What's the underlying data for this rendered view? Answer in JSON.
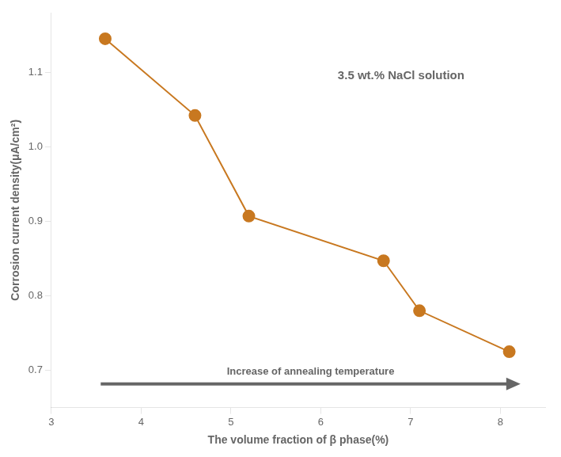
{
  "chart_data": {
    "type": "line",
    "x": [
      3.6,
      4.6,
      5.2,
      6.7,
      7.1,
      8.1
    ],
    "values": [
      1.145,
      1.042,
      0.907,
      0.847,
      0.78,
      0.725
    ],
    "color": "#C87820",
    "marker": "circle",
    "xlabel": "The volume fraction of β phase(%)",
    "ylabel": "Corrosion current density(μA/cm²)",
    "xlim": [
      3,
      8.5
    ],
    "ylim": [
      0.65,
      1.18
    ],
    "xticks": [
      3,
      4,
      5,
      6,
      7,
      8
    ],
    "yticks": [
      0.7,
      0.8,
      0.9,
      {
        "value": 1.0,
        "label": "1.0"
      },
      1.1
    ],
    "annotations": [
      "3.5 wt.% NaCl solution",
      "Increase of annealing temperature"
    ],
    "grid": false
  }
}
